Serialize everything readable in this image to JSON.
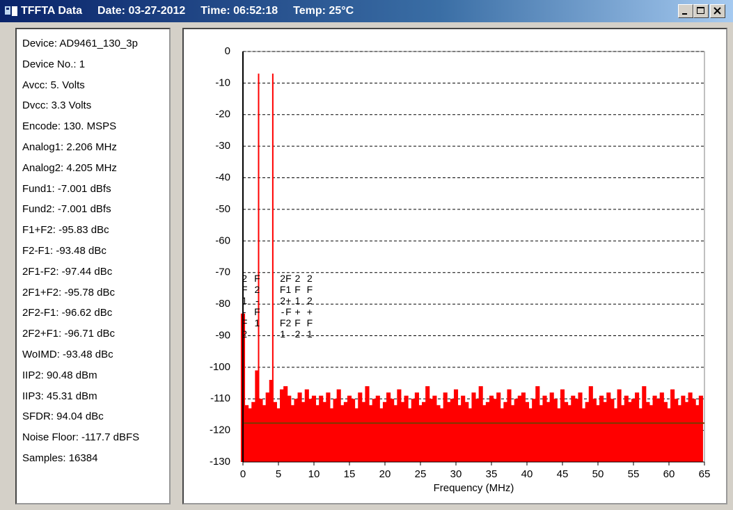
{
  "window": {
    "title": [
      "TFFTA Data",
      "Date: 03-27-2012",
      "Time: 06:52:18",
      "Temp: 25°C"
    ]
  },
  "panel": {
    "lines": [
      "Device: AD9461_130_3p",
      "Device No.: 1",
      "Avcc: 5. Volts",
      "Dvcc: 3.3 Volts",
      "Encode: 130. MSPS",
      "Analog1: 2.206 MHz",
      "Analog2: 4.205 MHz",
      "Fund1: -7.001 dBfs",
      "Fund2: -7.001 dBfs",
      "F1+F2: -95.83 dBc",
      "F2-F1: -93.48 dBc",
      "2F1-F2: -97.44 dBc",
      "2F1+F2: -95.78 dBc",
      "2F2-F1: -96.62 dBc",
      "2F2+F1: -96.71 dBc",
      "WoIMD: -93.48 dBc",
      "IIP2: 90.48 dBm",
      "IIP3: 45.31 dBm",
      "SFDR: 94.04 dBc",
      "Noise Floor: -117.7 dBFS",
      "Samples: 16384"
    ]
  },
  "chart_data": {
    "type": "stem",
    "xlabel": "Frequency (MHz)",
    "color": "#ff0000",
    "grid": true,
    "xlim": [
      0,
      65
    ],
    "xticks": [
      0,
      5,
      10,
      15,
      20,
      25,
      30,
      35,
      40,
      45,
      50,
      55,
      60,
      65
    ],
    "ylim": [
      -130,
      0
    ],
    "yticks": [
      0,
      -10,
      -20,
      -30,
      -40,
      -50,
      -60,
      -70,
      -80,
      -90,
      -100,
      -110,
      -120,
      -130
    ],
    "reference_line": {
      "value": -117.7,
      "color": "#7a3a00"
    },
    "x": [
      0,
      0.5,
      1,
      1.5,
      2,
      2.206,
      2.5,
      3,
      3.5,
      4,
      4.205,
      4.5,
      5,
      5.5,
      6,
      6.5,
      7,
      7.5,
      8,
      8.5,
      9,
      9.5,
      10,
      10.5,
      11,
      11.5,
      12,
      12.5,
      13,
      13.5,
      14,
      14.5,
      15,
      15.5,
      16,
      16.5,
      17,
      17.5,
      18,
      18.5,
      19,
      19.5,
      20,
      20.5,
      21,
      21.5,
      22,
      22.5,
      23,
      23.5,
      24,
      24.5,
      25,
      25.5,
      26,
      26.5,
      27,
      27.5,
      28,
      28.5,
      29,
      29.5,
      30,
      30.5,
      31,
      31.5,
      32,
      32.5,
      33,
      33.5,
      34,
      34.5,
      35,
      35.5,
      36,
      36.5,
      37,
      37.5,
      38,
      38.5,
      39,
      39.5,
      40,
      40.5,
      41,
      41.5,
      42,
      42.5,
      43,
      43.5,
      44,
      44.5,
      45,
      45.5,
      46,
      46.5,
      47,
      47.5,
      48,
      48.5,
      49,
      49.5,
      50,
      50.5,
      51,
      51.5,
      52,
      52.5,
      53,
      53.5,
      54,
      54.5,
      55,
      55.5,
      56,
      56.5,
      57,
      57.5,
      58,
      58.5,
      59,
      59.5,
      60,
      60.5,
      61,
      61.5,
      62,
      62.5,
      63,
      63.5,
      64,
      64.5
    ],
    "values": [
      -83,
      -112,
      -113,
      -111,
      -101,
      -7.001,
      -110,
      -112,
      -108,
      -104,
      -7.001,
      -111,
      -113,
      -107,
      -106,
      -109,
      -112,
      -110,
      -108,
      -111,
      -107,
      -110,
      -109,
      -112,
      -109,
      -111,
      -108,
      -113,
      -110,
      -107,
      -112,
      -111,
      -109,
      -110,
      -113,
      -108,
      -111,
      -106,
      -112,
      -110,
      -109,
      -113,
      -111,
      -108,
      -110,
      -112,
      -107,
      -111,
      -109,
      -113,
      -110,
      -108,
      -112,
      -111,
      -106,
      -110,
      -109,
      -112,
      -113,
      -108,
      -111,
      -110,
      -107,
      -112,
      -109,
      -111,
      -113,
      -108,
      -110,
      -106,
      -112,
      -111,
      -109,
      -110,
      -108,
      -113,
      -111,
      -107,
      -112,
      -110,
      -109,
      -108,
      -111,
      -113,
      -110,
      -106,
      -112,
      -109,
      -111,
      -108,
      -110,
      -113,
      -107,
      -111,
      -112,
      -109,
      -110,
      -108,
      -113,
      -111,
      -106,
      -110,
      -112,
      -109,
      -111,
      -108,
      -110,
      -113,
      -107,
      -112,
      -109,
      -111,
      -110,
      -108,
      -113,
      -106,
      -111,
      -112,
      -109,
      -110,
      -108,
      -111,
      -113,
      -107,
      -110,
      -112,
      -109,
      -111,
      -108,
      -110,
      -112,
      -109
    ],
    "annotations": [
      {
        "text": "2F1-F2",
        "x": 0.207
      },
      {
        "text": "F2-F1",
        "x": 1.999
      },
      {
        "text": "2F2-F1",
        "x": 5.6
      },
      {
        "text": "F1+F2",
        "x": 6.411
      },
      {
        "text": "2F1+F2",
        "x": 7.7
      },
      {
        "text": "2F2+F1",
        "x": 9.4
      }
    ]
  }
}
